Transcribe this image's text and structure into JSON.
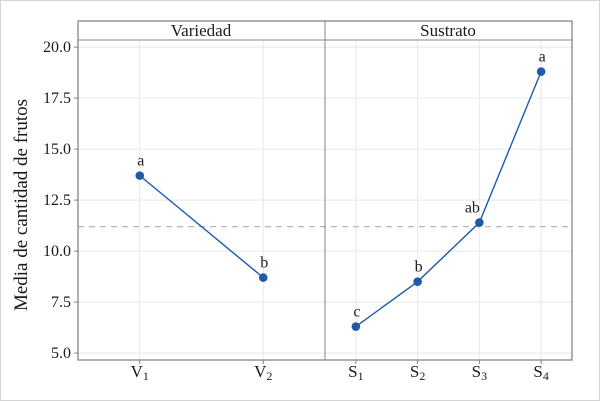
{
  "figure": {
    "background": "#ffffff",
    "border_color": "#d4d4d4"
  },
  "chart_data": {
    "type": "line",
    "ylabel": "Media de cantidad de frutos",
    "ylim": [
      4.66,
      20.35
    ],
    "yticks": [
      {
        "value": 5.0,
        "label": "5.0"
      },
      {
        "value": 7.5,
        "label": "7.5"
      },
      {
        "value": 10.0,
        "label": "10.0"
      },
      {
        "value": 12.5,
        "label": "12.5"
      },
      {
        "value": 15.0,
        "label": "15.0"
      },
      {
        "value": 17.5,
        "label": "17.5"
      },
      {
        "value": 20.0,
        "label": "20.0"
      }
    ],
    "grid": true,
    "reference_line": {
      "value": 11.2,
      "style": "dashed"
    },
    "panels": [
      {
        "title": "Variedad",
        "categories": [
          {
            "base": "V",
            "sub": "1"
          },
          {
            "base": "V",
            "sub": "2"
          }
        ],
        "values": [
          13.7,
          8.7
        ],
        "point_labels": [
          "a",
          "b"
        ]
      },
      {
        "title": "Sustrato",
        "categories": [
          {
            "base": "S",
            "sub": "1"
          },
          {
            "base": "S",
            "sub": "2"
          },
          {
            "base": "S",
            "sub": "3"
          },
          {
            "base": "S",
            "sub": "4"
          }
        ],
        "values": [
          6.3,
          8.5,
          11.4,
          18.8
        ],
        "point_labels": [
          "c",
          "b",
          "ab",
          "a"
        ]
      }
    ],
    "colors": {
      "series": "#1e5ba7",
      "grid": "#e8e8e8",
      "frame": "#858585",
      "reference": "#b8b8b8",
      "text": "#1a1a1a"
    }
  }
}
